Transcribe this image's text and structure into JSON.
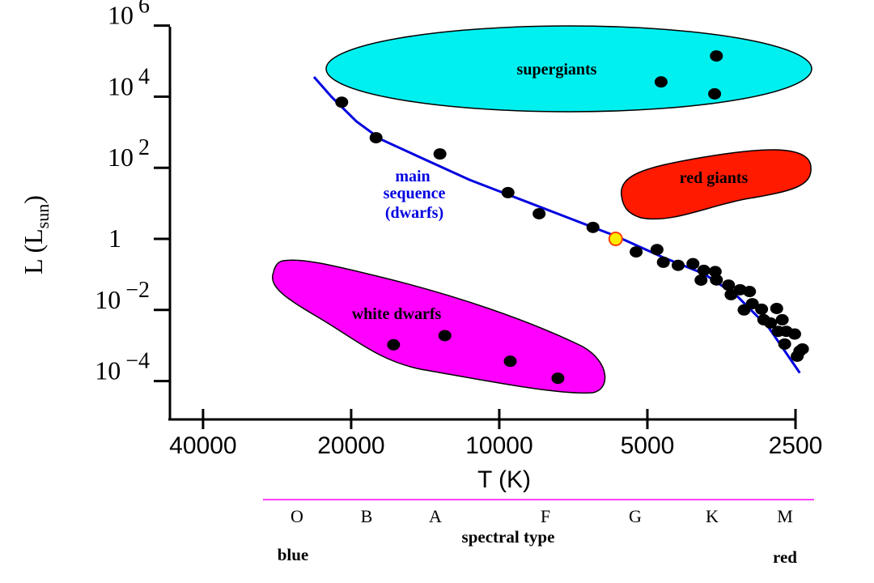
{
  "chart_data": {
    "type": "scatter",
    "title": "",
    "xlabel": "T (K)",
    "ylabel_main": "L (L",
    "ylabel_sub": "sun",
    "ylabel_close": ")",
    "x_scale": "log",
    "x_reversed": true,
    "y_scale": "log",
    "xlim": [
      45000,
      2400
    ],
    "ylim": [
      1e-05,
      1000000
    ],
    "grid": false,
    "xticks": [
      {
        "value": 40000,
        "label": "40000"
      },
      {
        "value": 20000,
        "label": "20000"
      },
      {
        "value": 10000,
        "label": "10000"
      },
      {
        "value": 5000,
        "label": "5000"
      },
      {
        "value": 2500,
        "label": "2500"
      }
    ],
    "yticks": [
      {
        "value": 1000000,
        "base": "10",
        "exp": "6"
      },
      {
        "value": 10000,
        "base": "10",
        "exp": "4"
      },
      {
        "value": 100,
        "base": "10",
        "exp": "2"
      },
      {
        "value": 1,
        "base": "1",
        "exp": ""
      },
      {
        "value": 0.01,
        "base": "10",
        "exp": "−2"
      },
      {
        "value": 0.0001,
        "base": "10",
        "exp": "−4"
      }
    ],
    "regions": {
      "supergiants": {
        "label": "supergiants",
        "color": "#00f0f0"
      },
      "red_giants": {
        "label": "red giants",
        "color": "#ff1a00"
      },
      "white_dwarfs": {
        "label": "white dwarfs",
        "color": "#ff00ff"
      },
      "main_sequence": {
        "label_lines": [
          "main",
          "sequence",
          "(dwarfs)"
        ],
        "color": "#0000e0"
      }
    },
    "main_sequence_line": [
      [
        23800,
        36000
      ],
      [
        21900,
        9700
      ],
      [
        19500,
        2000
      ],
      [
        17400,
        630
      ],
      [
        14400,
        190
      ],
      [
        11500,
        46
      ],
      [
        9200,
        14
      ],
      [
        7300,
        4.1
      ],
      [
        5800,
        1.2
      ],
      [
        4640,
        0.3
      ],
      [
        3840,
        0.105
      ],
      [
        3300,
        0.026
      ],
      [
        2830,
        0.0031
      ],
      [
        2450,
        0.00017
      ]
    ],
    "sun": {
      "T": 5800,
      "L": 1,
      "color": "#ffee00",
      "edge": "#ff4000"
    },
    "stars": {
      "main_sequence": [
        [
          20900,
          7000
        ],
        [
          17800,
          700
        ],
        [
          13200,
          245
        ],
        [
          9600,
          20
        ],
        [
          8300,
          5.1
        ],
        [
          6450,
          2.1
        ],
        [
          5270,
          0.43
        ],
        [
          4780,
          0.5
        ],
        [
          4640,
          0.22
        ],
        [
          4330,
          0.18
        ],
        [
          4040,
          0.2
        ],
        [
          3890,
          0.069
        ],
        [
          3840,
          0.13
        ],
        [
          3640,
          0.12
        ],
        [
          3620,
          0.07
        ],
        [
          3420,
          0.05
        ],
        [
          3380,
          0.027
        ],
        [
          3240,
          0.037
        ],
        [
          3180,
          0.01
        ],
        [
          3100,
          0.033
        ],
        [
          3060,
          0.015
        ],
        [
          2930,
          0.0105
        ],
        [
          2900,
          0.0053
        ],
        [
          2810,
          0.0043
        ],
        [
          2730,
          0.011
        ],
        [
          2710,
          0.0025
        ],
        [
          2660,
          0.0053
        ],
        [
          2610,
          0.0025
        ],
        [
          2630,
          0.0011
        ],
        [
          2510,
          0.0021
        ],
        [
          2450,
          0.0007
        ],
        [
          2420,
          0.0008
        ],
        [
          2480,
          0.0005
        ]
      ],
      "supergiants": [
        [
          3620,
          140000
        ],
        [
          4690,
          26000
        ],
        [
          3650,
          12000
        ]
      ],
      "white_dwarfs": [
        [
          16400,
          0.00105
        ],
        [
          12900,
          0.0019
        ],
        [
          9500,
          0.00036
        ],
        [
          7600,
          0.00012
        ]
      ]
    },
    "spectral_types": [
      "O",
      "B",
      "A",
      "F",
      "G",
      "K",
      "M"
    ],
    "spectral_label": "spectral type",
    "spectral_line_color": "#ff00ff",
    "blue_label": "blue",
    "red_label": "red"
  }
}
